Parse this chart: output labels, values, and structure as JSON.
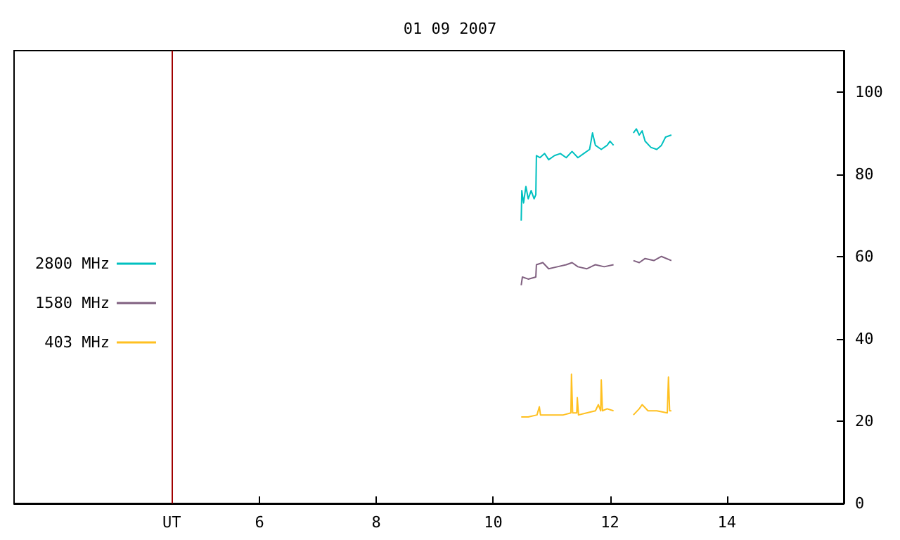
{
  "chart_data": {
    "type": "line",
    "title": "01 09 2007",
    "xlim": [
      1.8,
      16
    ],
    "xticks": [
      {
        "value": 4.5,
        "label": "UT"
      },
      6,
      8,
      10,
      12,
      14
    ],
    "ylim": [
      0,
      110
    ],
    "yticks": [
      0,
      20,
      40,
      60,
      80,
      100
    ],
    "grid": false,
    "legend": "left",
    "marker": "none",
    "line_style": "solid",
    "ref_lines": [
      {
        "axis": "x",
        "value": 4.5,
        "label": null,
        "color": "#a00000"
      }
    ],
    "series": [
      {
        "name": "2800 MHz",
        "color": "#00c0c0",
        "x": [
          10.48,
          10.49,
          10.52,
          10.56,
          10.6,
          10.65,
          10.7,
          10.73,
          10.74,
          10.8,
          10.88,
          10.95,
          11.05,
          11.15,
          11.25,
          11.35,
          11.45,
          11.55,
          11.65,
          11.7,
          11.75,
          11.85,
          11.95,
          12.0,
          12.06,
          12.2,
          12.4,
          12.45,
          12.5,
          12.55,
          12.6,
          12.7,
          12.8,
          12.88,
          12.95,
          13.05
        ],
        "values": [
          68.7,
          76,
          73,
          77,
          74,
          76,
          74,
          75,
          84.5,
          84,
          85,
          83.5,
          84.5,
          85,
          84,
          85.5,
          84,
          85,
          86,
          90,
          87,
          86,
          87,
          88,
          87,
          null,
          90,
          91,
          89.5,
          90.5,
          88,
          86.5,
          86,
          87,
          89,
          89.5
        ]
      },
      {
        "name": "1580 MHz",
        "color": "#806080",
        "x": [
          10.48,
          10.5,
          10.6,
          10.73,
          10.74,
          10.85,
          10.95,
          11.1,
          11.25,
          11.35,
          11.45,
          11.6,
          11.75,
          11.9,
          12.06,
          12.2,
          12.4,
          12.5,
          12.6,
          12.75,
          12.88,
          13.05
        ],
        "values": [
          53,
          55,
          54.5,
          55,
          58,
          58.5,
          57,
          57.5,
          58,
          58.5,
          57.5,
          57,
          58,
          57.5,
          58,
          null,
          59,
          58.5,
          59.5,
          59,
          60,
          59
        ]
      },
      {
        "name": "403 MHz",
        "color": "#ffc020",
        "x": [
          10.48,
          10.6,
          10.75,
          10.79,
          10.81,
          11.0,
          11.2,
          11.33,
          11.34,
          11.36,
          11.43,
          11.44,
          11.46,
          11.6,
          11.75,
          11.8,
          11.84,
          11.85,
          11.87,
          11.95,
          12.06,
          12.2,
          12.4,
          12.5,
          12.55,
          12.65,
          12.8,
          12.98,
          13.0,
          13.02,
          13.05
        ],
        "values": [
          21,
          21,
          21.5,
          23.5,
          21.5,
          21.5,
          21.5,
          22,
          31.4,
          22,
          22,
          25.7,
          21.5,
          22,
          22.5,
          24,
          22.5,
          30,
          22.5,
          23,
          22.5,
          null,
          21.5,
          23,
          24,
          22.5,
          22.5,
          22,
          30.7,
          22.5,
          22.5
        ]
      }
    ]
  }
}
